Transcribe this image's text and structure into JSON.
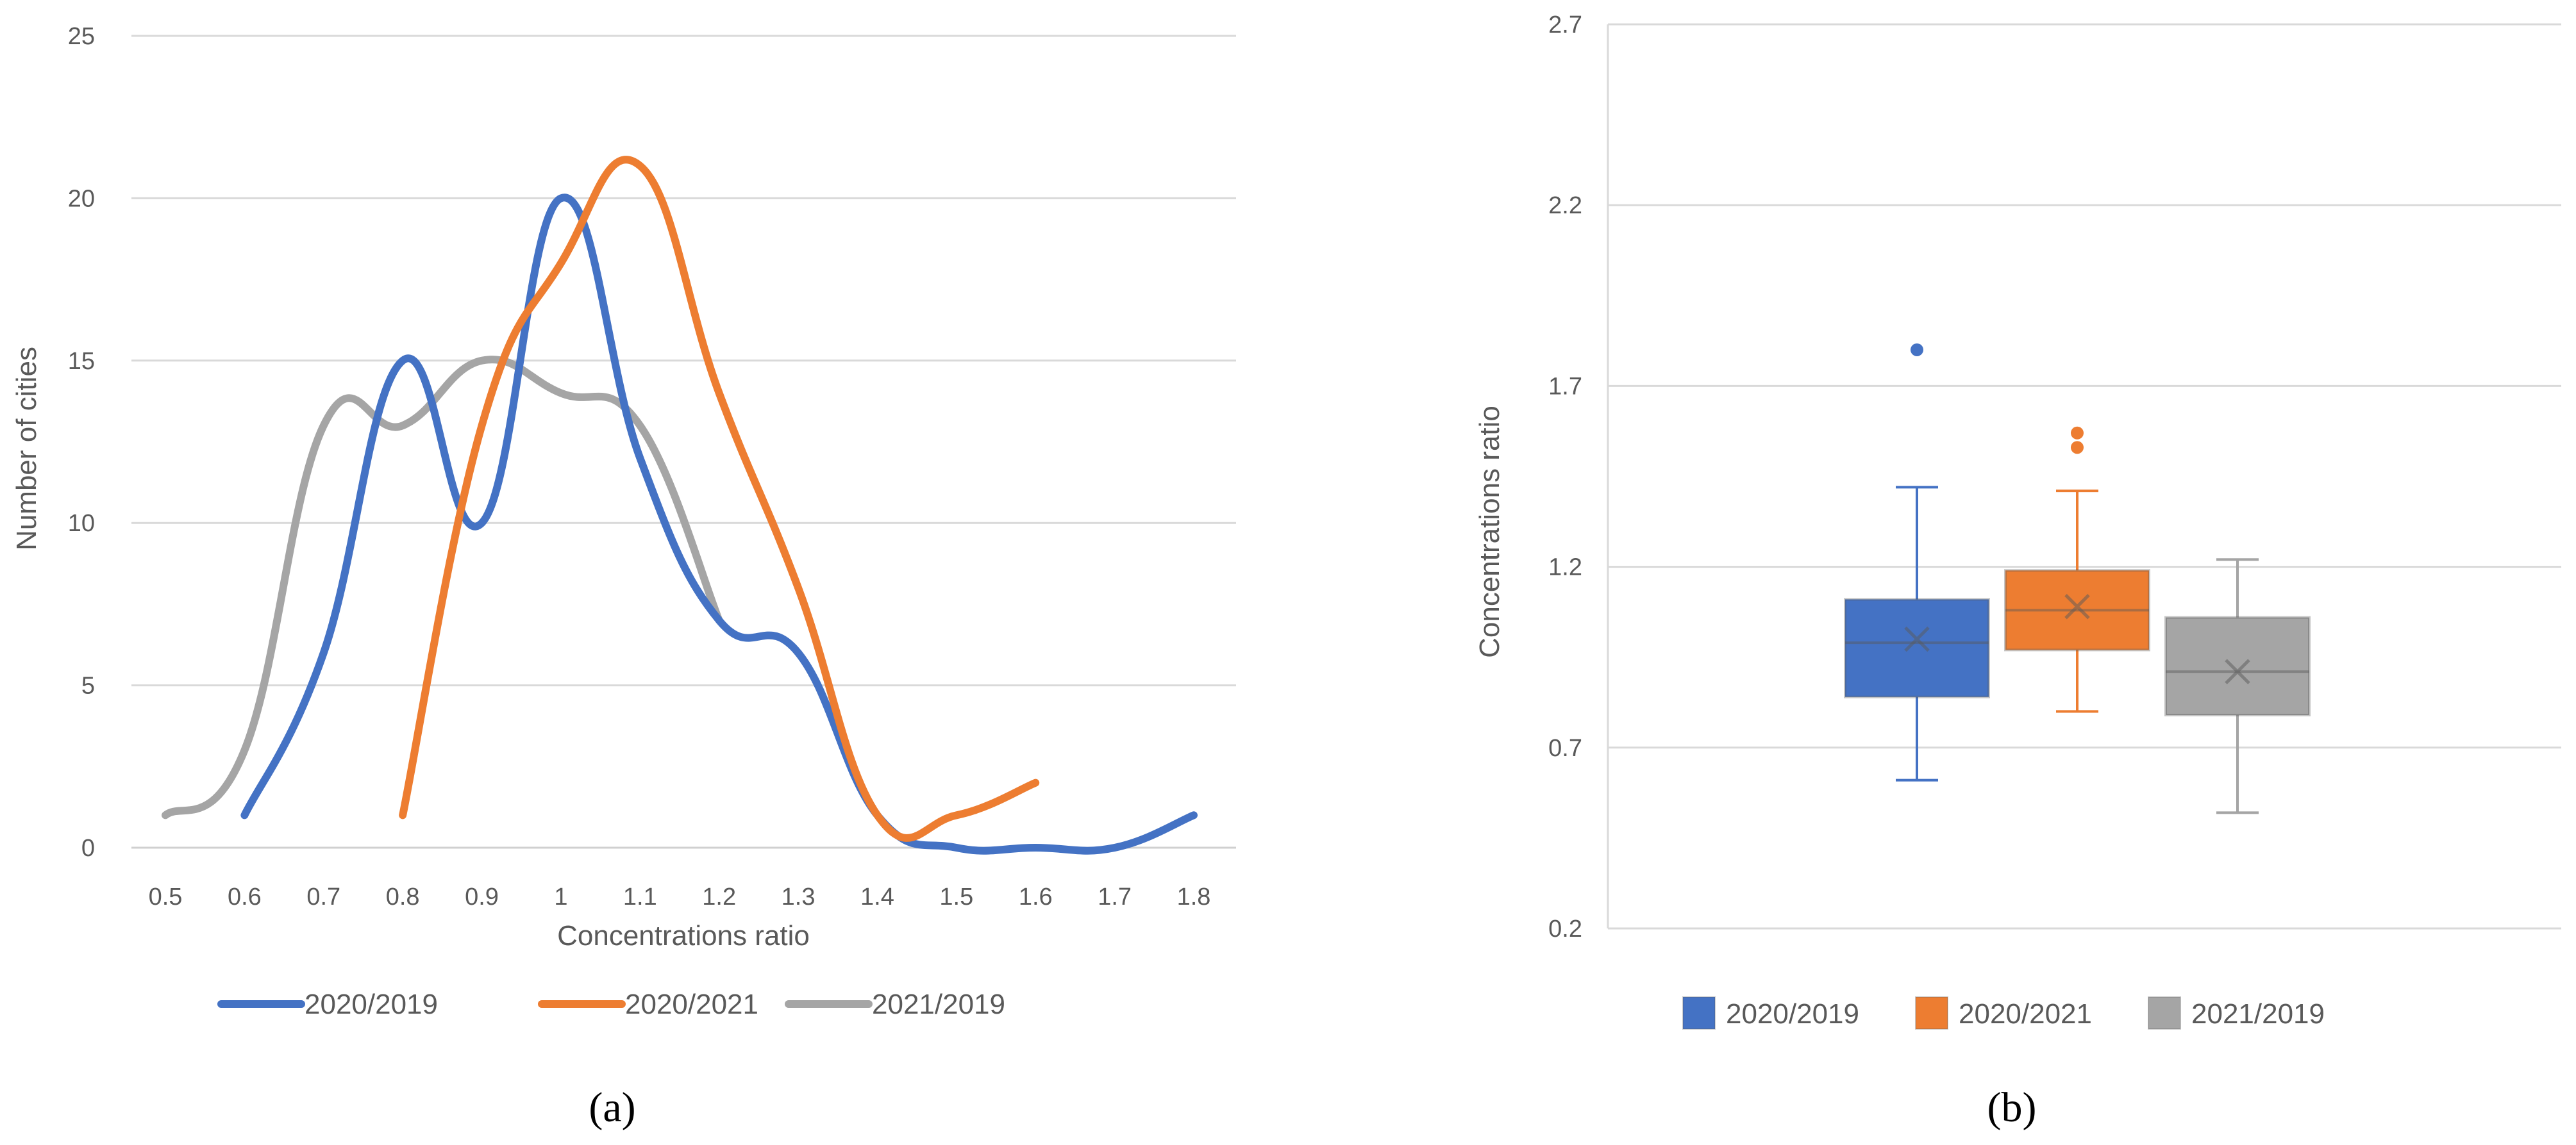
{
  "chart_data": [
    {
      "type": "line",
      "panel_label": "(a)",
      "xlabel": "Concentrations ratio",
      "ylabel": "Number of cities",
      "xticks": [
        "0.5",
        "0.6",
        "0.7",
        "0.8",
        "0.9",
        "1",
        "1.1",
        "1.2",
        "1.3",
        "1.4",
        "1.5",
        "1.6",
        "1.7",
        "1.8"
      ],
      "ylim": [
        0,
        25
      ],
      "yticks": [
        "0",
        "5",
        "10",
        "15",
        "20",
        "25"
      ],
      "grid": "horizontal",
      "smooth": true,
      "legend": "bottom",
      "series": [
        {
          "name": "2020/2019",
          "color": "#4472C4",
          "x": [
            0.6,
            0.7,
            0.8,
            0.9,
            1.0,
            1.1,
            1.2,
            1.3,
            1.4,
            1.5,
            1.6,
            1.7,
            1.8
          ],
          "y": [
            1,
            6,
            15,
            10,
            20,
            12,
            7,
            6,
            1,
            0,
            0,
            0,
            1
          ]
        },
        {
          "name": "2020/2021",
          "color": "#ED7D31",
          "x": [
            0.8,
            0.9,
            1.0,
            1.1,
            1.2,
            1.3,
            1.4,
            1.5,
            1.6
          ],
          "y": [
            1,
            13,
            18,
            21,
            14,
            8,
            1,
            1,
            2
          ]
        },
        {
          "name": "2021/2019",
          "color": "#A5A5A5",
          "x": [
            0.5,
            0.6,
            0.7,
            0.8,
            0.9,
            1.0,
            1.1,
            1.2
          ],
          "y": [
            1,
            3,
            13,
            13,
            15,
            14,
            13,
            7
          ]
        }
      ]
    },
    {
      "type": "box",
      "panel_label": "(b)",
      "ylabel": "Concentrations ratio",
      "ylim": [
        0.2,
        2.7
      ],
      "yticks": [
        "0.2",
        "0.7",
        "1.2",
        "1.7",
        "2.2",
        "2.7"
      ],
      "grid": "horizontal",
      "legend": "bottom",
      "series": [
        {
          "name": "2020/2019",
          "color": "#4472C4",
          "min": 0.61,
          "q1": 0.84,
          "median": 0.99,
          "q3": 1.11,
          "max": 1.42,
          "mean": 1.0,
          "outliers": [
            1.8
          ]
        },
        {
          "name": "2020/2021",
          "color": "#ED7D31",
          "min": 0.8,
          "q1": 0.97,
          "median": 1.08,
          "q3": 1.19,
          "max": 1.41,
          "mean": 1.09,
          "outliers": [
            1.53,
            1.57
          ]
        },
        {
          "name": "2021/2019",
          "color": "#A5A5A5",
          "min": 0.52,
          "q1": 0.79,
          "median": 0.91,
          "q3": 1.06,
          "max": 1.22,
          "mean": 0.91,
          "outliers": []
        }
      ]
    }
  ]
}
